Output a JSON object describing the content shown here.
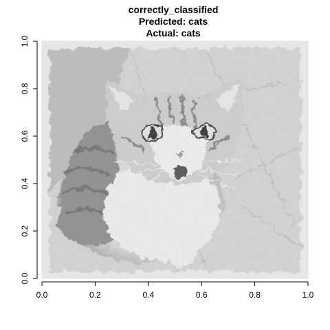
{
  "chart_data": {
    "type": "image",
    "title": [
      "correctly_classified",
      "Predicted: cats",
      "Actual: cats"
    ],
    "xlabel": "",
    "ylabel": "",
    "xlim": [
      0,
      1
    ],
    "ylim": [
      0,
      1
    ],
    "x_ticks": [
      "0.0",
      "0.2",
      "0.4",
      "0.6",
      "0.8",
      "1.0"
    ],
    "y_ticks": [
      "0.0",
      "0.2",
      "0.4",
      "0.6",
      "0.8",
      "1.0"
    ],
    "image_subject": "cat-photo-grayscale",
    "grid": false
  }
}
